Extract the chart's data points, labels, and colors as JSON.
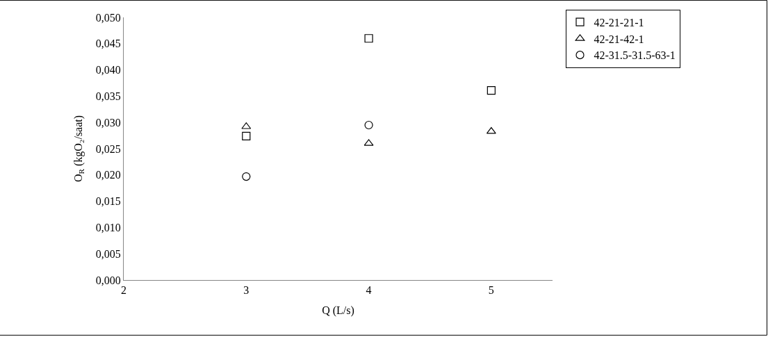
{
  "chart_data": {
    "type": "scatter",
    "xlabel": "Q (L/s)",
    "ylabel": "O$_{R}$ (kgO₂/saat)",
    "xlim": [
      2,
      5.5
    ],
    "xticks": [
      2,
      3,
      4,
      5
    ],
    "ylim": [
      0,
      0.05
    ],
    "yticks": [
      {
        "value": 0,
        "label": "0,000"
      },
      {
        "value": 0.005,
        "label": "0,005"
      },
      {
        "value": 0.01,
        "label": "0,010"
      },
      {
        "value": 0.015,
        "label": "0,015"
      },
      {
        "value": 0.02,
        "label": "0,020"
      },
      {
        "value": 0.025,
        "label": "0,025"
      },
      {
        "value": 0.03,
        "label": "0,030"
      },
      {
        "value": 0.035,
        "label": "0,035"
      },
      {
        "value": 0.04,
        "label": "0,040"
      },
      {
        "value": 0.045,
        "label": "0,045"
      },
      {
        "value": 0.05,
        "label": "0,050"
      }
    ],
    "legend": "top right",
    "series": [
      {
        "name": "42-21-21-1",
        "color": "#000000",
        "marker": "square",
        "x": [
          3,
          4,
          5
        ],
        "values": [
          0.0274,
          0.046,
          0.0361
        ]
      },
      {
        "name": "42-21-42-1",
        "color": "#000000",
        "marker": "triangle",
        "x": [
          3,
          4,
          5
        ],
        "values": [
          0.0292,
          0.026,
          0.0283
        ]
      },
      {
        "name": "42-31.5-31.5-63-1",
        "color": "#000000",
        "marker": "circle",
        "x": [
          3,
          4
        ],
        "values": [
          0.0197,
          0.0295
        ]
      }
    ]
  }
}
